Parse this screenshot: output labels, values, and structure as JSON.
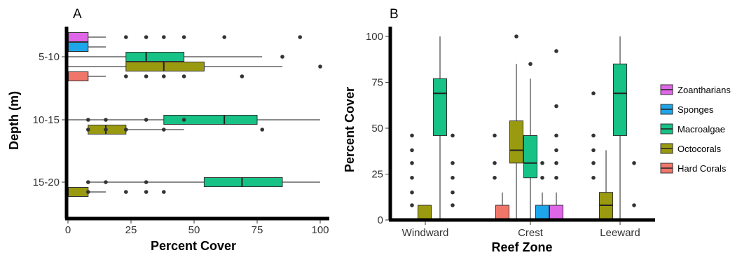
{
  "colors": {
    "Zoantharians": "#e066e8",
    "Sponges": "#1ea6ea",
    "Macroalgae": "#16c286",
    "Octocorals": "#9a9a10",
    "Hard Corals": "#f0766a"
  },
  "legend": {
    "items": [
      "Zoantharians",
      "Sponges",
      "Macroalgae",
      "Octocorals",
      "Hard Corals"
    ]
  },
  "chart_data": [
    {
      "type": "boxplot",
      "panel_label": "A",
      "orientation": "horizontal",
      "xlabel": "Percent Cover",
      "ylabel": "Depth (m)",
      "xlim": [
        0,
        100
      ],
      "xticks": [
        0,
        25,
        50,
        75,
        100
      ],
      "categories": [
        "5-10",
        "10-15",
        "15-20"
      ],
      "boxes": [
        {
          "category": "5-10",
          "group": "Zoantharians",
          "min": 0,
          "q1": 0,
          "median": 0,
          "q3": 8,
          "max": 15,
          "outliers": [
            23,
            31,
            38,
            46,
            62,
            92
          ]
        },
        {
          "category": "5-10",
          "group": "Sponges",
          "min": 0,
          "q1": 0,
          "median": 0,
          "q3": 8,
          "max": 15,
          "outliers": []
        },
        {
          "category": "5-10",
          "group": "Macroalgae",
          "min": 0,
          "q1": 23,
          "median": 31,
          "q3": 46,
          "max": 77,
          "outliers": [
            85
          ]
        },
        {
          "category": "5-10",
          "group": "Octocorals",
          "min": 0,
          "q1": 23,
          "median": 38,
          "q3": 54,
          "max": 85,
          "outliers": [
            100
          ]
        },
        {
          "category": "5-10",
          "group": "Hard Corals",
          "min": 0,
          "q1": 0,
          "median": 0,
          "q3": 8,
          "max": 15,
          "outliers": [
            23,
            31,
            38,
            46,
            69
          ]
        },
        {
          "category": "10-15",
          "group": "Macroalgae",
          "min": 0,
          "q1": 38,
          "median": 62,
          "q3": 75,
          "max": 100,
          "outliers": [
            8,
            15,
            31,
            46
          ]
        },
        {
          "category": "10-15",
          "group": "Octocorals",
          "min": 8,
          "q1": 8,
          "median": 15,
          "q3": 23,
          "max": 46,
          "outliers": [
            8,
            15,
            23,
            38,
            77
          ]
        },
        {
          "category": "15-20",
          "group": "Macroalgae",
          "min": 8,
          "q1": 54,
          "median": 69,
          "q3": 85,
          "max": 100,
          "outliers": [
            8,
            15,
            31
          ]
        },
        {
          "category": "15-20",
          "group": "Octocorals",
          "min": 0,
          "q1": 0,
          "median": 0,
          "q3": 8,
          "max": 15,
          "outliers": [
            8,
            23,
            31,
            38
          ]
        }
      ]
    },
    {
      "type": "boxplot",
      "panel_label": "B",
      "orientation": "vertical",
      "xlabel": "Reef Zone",
      "ylabel": "Percent Cover",
      "ylim": [
        0,
        100
      ],
      "yticks": [
        0,
        25,
        50,
        75,
        100
      ],
      "categories": [
        "Windward",
        "Crest",
        "Leeward"
      ],
      "boxes": [
        {
          "category": "Windward",
          "group": "Octocorals",
          "min": 0,
          "q1": 0,
          "median": 0,
          "q3": 8,
          "max": 8,
          "outliers": [
            8,
            15,
            23,
            31,
            38,
            46
          ]
        },
        {
          "category": "Windward",
          "group": "Macroalgae",
          "min": 0,
          "q1": 46,
          "median": 69,
          "q3": 77,
          "max": 100,
          "outliers": [
            8,
            15,
            23,
            31,
            46
          ]
        },
        {
          "category": "Crest",
          "group": "Hard Corals",
          "min": 0,
          "q1": 0,
          "median": 0,
          "q3": 8,
          "max": 15,
          "outliers": [
            23,
            31,
            46
          ]
        },
        {
          "category": "Crest",
          "group": "Octocorals",
          "min": 0,
          "q1": 31,
          "median": 38,
          "q3": 54,
          "max": 85,
          "outliers": [
            100
          ]
        },
        {
          "category": "Crest",
          "group": "Macroalgae",
          "min": 0,
          "q1": 23,
          "median": 31,
          "q3": 46,
          "max": 77,
          "outliers": [
            85
          ]
        },
        {
          "category": "Crest",
          "group": "Sponges",
          "min": 0,
          "q1": 0,
          "median": 0,
          "q3": 8,
          "max": 15,
          "outliers": [
            23,
            31
          ]
        },
        {
          "category": "Crest",
          "group": "Zoantharians",
          "min": 0,
          "q1": 0,
          "median": 0,
          "q3": 8,
          "max": 15,
          "outliers": [
            23,
            31,
            38,
            46,
            62,
            92
          ]
        },
        {
          "category": "Leeward",
          "group": "Octocorals",
          "min": 0,
          "q1": 0,
          "median": 8,
          "q3": 15,
          "max": 38,
          "outliers": [
            23,
            31,
            38,
            46,
            69
          ]
        },
        {
          "category": "Leeward",
          "group": "Macroalgae",
          "min": 0,
          "q1": 46,
          "median": 69,
          "q3": 85,
          "max": 100,
          "outliers": [
            8,
            31
          ]
        }
      ]
    }
  ]
}
